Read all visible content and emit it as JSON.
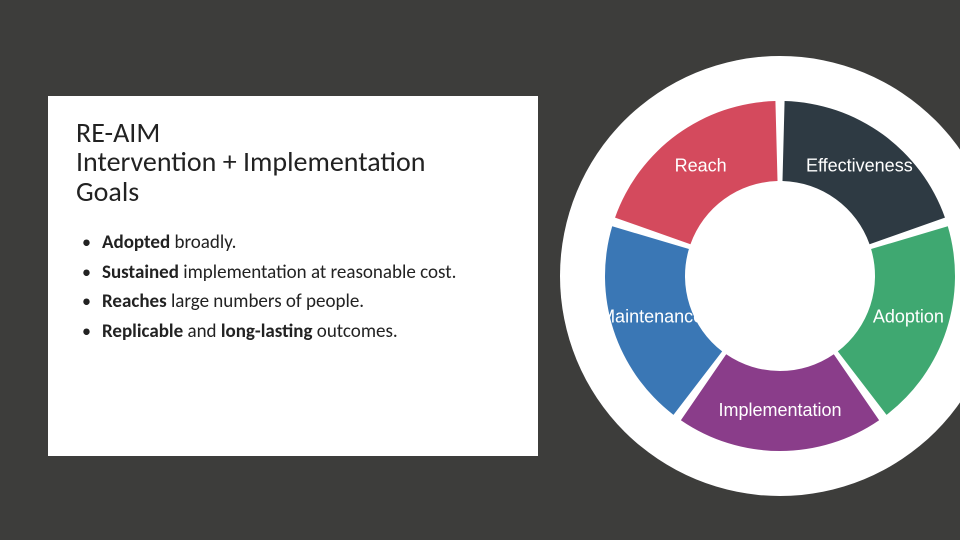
{
  "background_color": "#3d3d3b",
  "panel_background": "#ffffff",
  "title": {
    "line1": "RE-AIM",
    "line2": "Intervention + Implementation",
    "line3": "Goals",
    "fontsize": 28,
    "weight": 300,
    "color": "#222222"
  },
  "bullets": {
    "fontsize": 19,
    "color": "#222222",
    "items": [
      {
        "bold1": "Adopted",
        "rest1": " broadly."
      },
      {
        "bold1": "Sustained",
        "rest1": " implementation at reasonable cost."
      },
      {
        "bold1": "Reaches",
        "rest1": " large numbers of people."
      },
      {
        "bold1": "Replicable",
        "rest1": " and ",
        "bold2": "long-lasting",
        "rest2": " outcomes."
      }
    ]
  },
  "donut": {
    "type": "pie-donut",
    "center_bg": "#ffffff",
    "outer_radius": 175,
    "inner_radius": 95,
    "gap_deg": 3,
    "label_fontsize": 18,
    "label_color": "#ffffff",
    "segments": [
      {
        "label": "Reach",
        "fraction": 0.2,
        "color": "#d44a5d"
      },
      {
        "label": "Effectiveness",
        "fraction": 0.2,
        "color": "#2e3a43"
      },
      {
        "label": "Adoption",
        "fraction": 0.2,
        "color": "#3fa871"
      },
      {
        "label": "Implementation",
        "fraction": 0.2,
        "color": "#8a3d8a"
      },
      {
        "label": "Maintenance",
        "fraction": 0.2,
        "color": "#3a77b5"
      }
    ]
  }
}
